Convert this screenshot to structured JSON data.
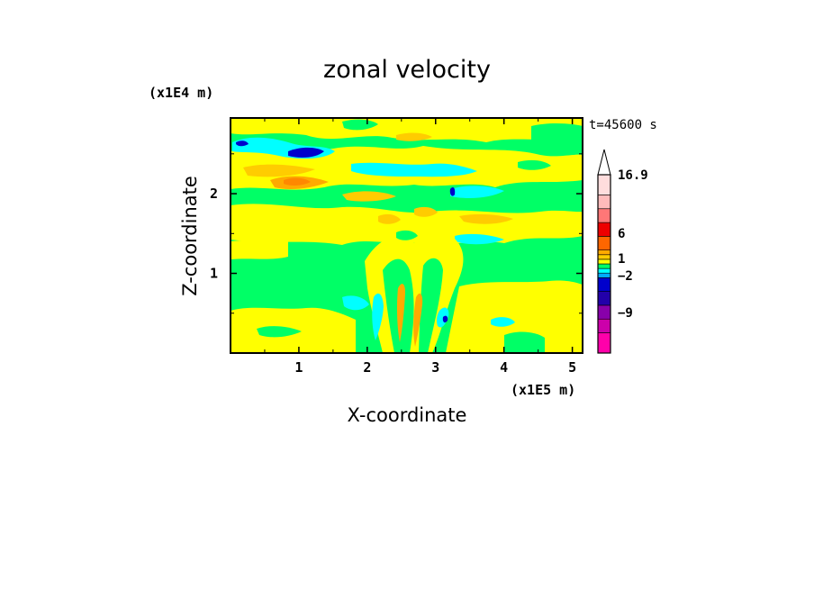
{
  "chart_data": {
    "type": "heatmap",
    "title": "zonal velocity",
    "xlabel": "X-coordinate",
    "ylabel": "Z-coordinate",
    "x_unit": "(x1E5 m)",
    "y_unit": "(x1E4 m)",
    "time_label": "t=45600 s",
    "xlim": [
      0,
      5.15
    ],
    "ylim": [
      0,
      2.95
    ],
    "x_ticks": [
      1,
      2,
      3,
      4,
      5
    ],
    "y_ticks": [
      1,
      2
    ],
    "colorbar": {
      "extend": "max",
      "labels": [
        {
          "value": 16.9,
          "text": "16.9"
        },
        {
          "value": 6,
          "text": "6"
        },
        {
          "value": 1,
          "text": "1"
        },
        {
          "value": -2,
          "text": "−2"
        },
        {
          "value": -9,
          "text": "−9"
        }
      ],
      "levels": [
        {
          "color": "#ff00aa"
        },
        {
          "color": "#cc00aa"
        },
        {
          "color": "#8800aa"
        },
        {
          "color": "#2200aa"
        },
        {
          "color": "#0000cc"
        },
        {
          "color": "#00aaff"
        },
        {
          "color": "#00ffff"
        },
        {
          "color": "#00ff66"
        },
        {
          "color": "#ffff00"
        },
        {
          "color": "#ffcc00"
        },
        {
          "color": "#ffaa00"
        },
        {
          "color": "#ff6600"
        },
        {
          "color": "#ee0000"
        },
        {
          "color": "#ff7777"
        },
        {
          "color": "#ffbbbb"
        },
        {
          "color": "#ffdddd"
        }
      ]
    },
    "colors": {
      "background_field": "#00ff66",
      "yellow": "#ffff00",
      "orange": "#ffcc00",
      "orange_dark": "#ffaa00",
      "red": "#ff6600",
      "cyan": "#00ffff",
      "blue": "#0000cc",
      "frame": "#000000"
    }
  }
}
